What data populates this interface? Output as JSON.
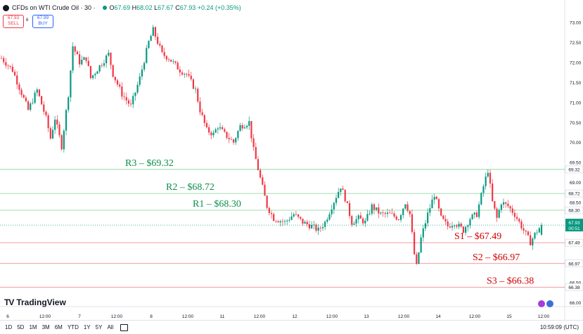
{
  "header": {
    "title": "CFDs on WTI Crude Oil · 30 ·",
    "o_label": "O",
    "o": "67.69",
    "h_label": "H",
    "h": "68.02",
    "l_label": "L",
    "l": "67.67",
    "c_label": "C",
    "c": "67.93",
    "change": "+0.24 (+0.35%)"
  },
  "trade": {
    "sell_price": "67.93",
    "sell_label": "SELL",
    "spread": "6",
    "buy_price": "67.99",
    "buy_label": "BUY"
  },
  "brand": {
    "name": "TradingView",
    "mark": "TV"
  },
  "timeframes": [
    "1D",
    "5D",
    "1M",
    "3M",
    "6M",
    "YTD",
    "1Y",
    "5Y",
    "All"
  ],
  "clock": "10:59:09 (UTC)",
  "colors": {
    "up": "#089981",
    "down": "#f23645",
    "resistance": "#22ab47",
    "support": "#e0141e",
    "resistance_label": "#0a8f4a",
    "support_label": "#d10000"
  },
  "chart_data": {
    "type": "candlestick",
    "interval": "30",
    "ylim": [
      66.0,
      73.2
    ],
    "y_ticks": [
      "73.00",
      "72.50",
      "72.00",
      "71.50",
      "71.00",
      "70.50",
      "70.00",
      "69.50",
      "69.00",
      "68.50",
      "68.00",
      "67.50",
      "67.00",
      "66.50",
      "66.00"
    ],
    "x_ticks": [
      "6",
      "12:00",
      "7",
      "12:00",
      "8",
      "12:00",
      "11",
      "12:00",
      "12",
      "12:00",
      "13",
      "12:00",
      "14",
      "12:00",
      "15",
      "12:00"
    ],
    "levels": [
      {
        "name": "R3",
        "value": 69.32,
        "label": "R3 – $69.32",
        "axis_label": "69.32",
        "kind": "resistance"
      },
      {
        "name": "R2",
        "value": 68.72,
        "label": "R2 – $68.72",
        "axis_label": "68.72",
        "kind": "resistance"
      },
      {
        "name": "R1",
        "value": 68.3,
        "label": "R1 – $68.30",
        "axis_label": "68.30",
        "kind": "resistance"
      },
      {
        "name": "S1",
        "value": 67.49,
        "label": "S1 – $67.49",
        "axis_label": "67.49",
        "kind": "support"
      },
      {
        "name": "S2",
        "value": 66.97,
        "label": "S2 – $66.97",
        "axis_label": "66.97",
        "kind": "support"
      },
      {
        "name": "S3",
        "value": 66.38,
        "label": "S3 – $66.38",
        "axis_label": "66.38",
        "kind": "support"
      }
    ],
    "last_price": 67.93,
    "last_price_label": "67.93",
    "countdown": "00:51",
    "close_path": [
      [
        0,
        72.1
      ],
      [
        5,
        71.8
      ],
      [
        12,
        70.8
      ],
      [
        16,
        71.3
      ],
      [
        20,
        70.6
      ],
      [
        22,
        70.1
      ],
      [
        24,
        70.6
      ],
      [
        27,
        69.9
      ],
      [
        30,
        71.2
      ],
      [
        32,
        72.4
      ],
      [
        35,
        72.0
      ],
      [
        38,
        72.1
      ],
      [
        40,
        71.6
      ],
      [
        44,
        71.9
      ],
      [
        48,
        72.2
      ],
      [
        50,
        71.7
      ],
      [
        54,
        71.2
      ],
      [
        58,
        70.9
      ],
      [
        62,
        71.6
      ],
      [
        66,
        72.5
      ],
      [
        68,
        72.8
      ],
      [
        72,
        72.2
      ],
      [
        75,
        72.1
      ],
      [
        80,
        71.8
      ],
      [
        83,
        71.7
      ],
      [
        87,
        71.3
      ],
      [
        89,
        70.8
      ],
      [
        92,
        70.3
      ],
      [
        95,
        70.2
      ],
      [
        97,
        70.4
      ],
      [
        100,
        70.2
      ],
      [
        104,
        70.0
      ],
      [
        107,
        70.4
      ],
      [
        111,
        70.5
      ],
      [
        113,
        69.8
      ],
      [
        116,
        69.1
      ],
      [
        119,
        68.4
      ],
      [
        122,
        68.1
      ],
      [
        127,
        68.0
      ],
      [
        131,
        68.2
      ],
      [
        135,
        68.0
      ],
      [
        139,
        67.9
      ],
      [
        142,
        67.8
      ],
      [
        145,
        68.0
      ],
      [
        148,
        68.4
      ],
      [
        152,
        68.9
      ],
      [
        154,
        68.6
      ],
      [
        157,
        68.0
      ],
      [
        160,
        68.1
      ],
      [
        163,
        68.0
      ],
      [
        166,
        68.4
      ],
      [
        170,
        68.2
      ],
      [
        174,
        68.2
      ],
      [
        178,
        68.1
      ],
      [
        181,
        68.5
      ],
      [
        183,
        68.2
      ],
      [
        185,
        67.2
      ],
      [
        186,
        66.9
      ],
      [
        188,
        67.6
      ],
      [
        191,
        68.2
      ],
      [
        194,
        68.7
      ],
      [
        197,
        68.1
      ],
      [
        200,
        67.9
      ],
      [
        203,
        68.0
      ],
      [
        207,
        67.8
      ],
      [
        210,
        68.1
      ],
      [
        213,
        68.2
      ],
      [
        216,
        68.9
      ],
      [
        218,
        69.3
      ],
      [
        220,
        68.5
      ],
      [
        222,
        68.1
      ],
      [
        224,
        68.5
      ],
      [
        227,
        68.4
      ],
      [
        230,
        68.2
      ],
      [
        234,
        67.8
      ],
      [
        237,
        67.5
      ],
      [
        239,
        67.7
      ],
      [
        242,
        67.93
      ]
    ]
  }
}
